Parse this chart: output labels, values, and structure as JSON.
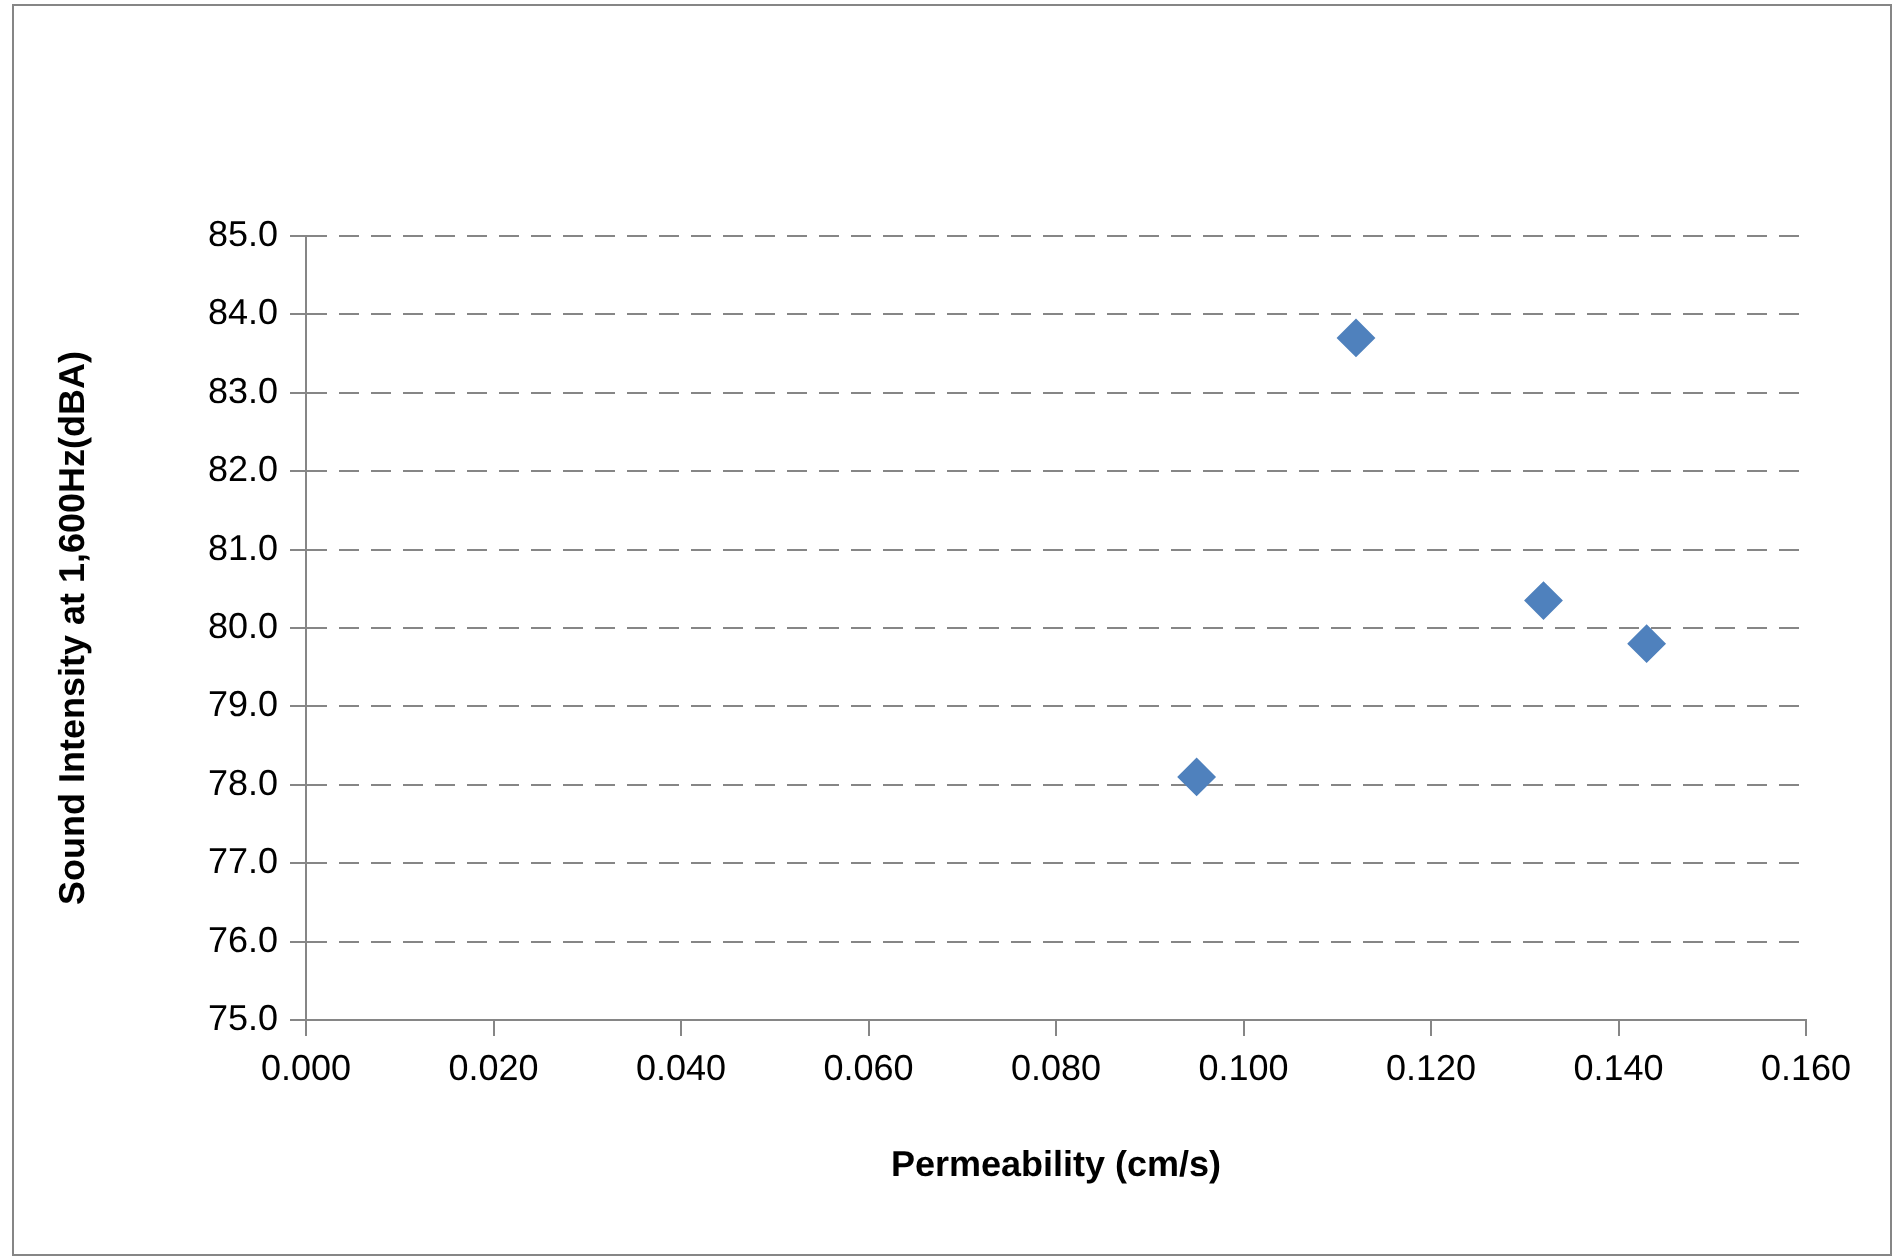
{
  "chart_data": {
    "type": "scatter",
    "xlabel": "Permeability (cm/s)",
    "ylabel": "Sound Intensity at 1,600Hz(dBA)",
    "x": [
      0.095,
      0.112,
      0.132,
      0.143
    ],
    "series": [
      {
        "color": "#4f81bd",
        "values": [
          78.1,
          83.7,
          80.35,
          79.8
        ]
      }
    ],
    "xlim": [
      0,
      0.16
    ],
    "xticks": [
      {
        "value": 0,
        "label": "0.000"
      },
      {
        "value": 0.02,
        "label": "0.020"
      },
      {
        "value": 0.04,
        "label": "0.040"
      },
      {
        "value": 0.06,
        "label": "0.060"
      },
      {
        "value": 0.08,
        "label": "0.080"
      },
      {
        "value": 0.1,
        "label": "0.100"
      },
      {
        "value": 0.12,
        "label": "0.120"
      },
      {
        "value": 0.14,
        "label": "0.140"
      },
      {
        "value": 0.16,
        "label": "0.160"
      }
    ],
    "ylim": [
      75,
      85
    ],
    "yticks": [
      {
        "value": 75,
        "label": "75.0"
      },
      {
        "value": 76,
        "label": "76.0"
      },
      {
        "value": 77,
        "label": "77.0"
      },
      {
        "value": 78,
        "label": "78.0"
      },
      {
        "value": 79,
        "label": "79.0"
      },
      {
        "value": 80,
        "label": "80.0"
      },
      {
        "value": 81,
        "label": "81.0"
      },
      {
        "value": 82,
        "label": "82.0"
      },
      {
        "value": 83,
        "label": "83.0"
      },
      {
        "value": 84,
        "label": "84.0"
      },
      {
        "value": 85,
        "label": "85.0"
      }
    ],
    "grid": "y",
    "marker": "diamond",
    "legend": false
  }
}
